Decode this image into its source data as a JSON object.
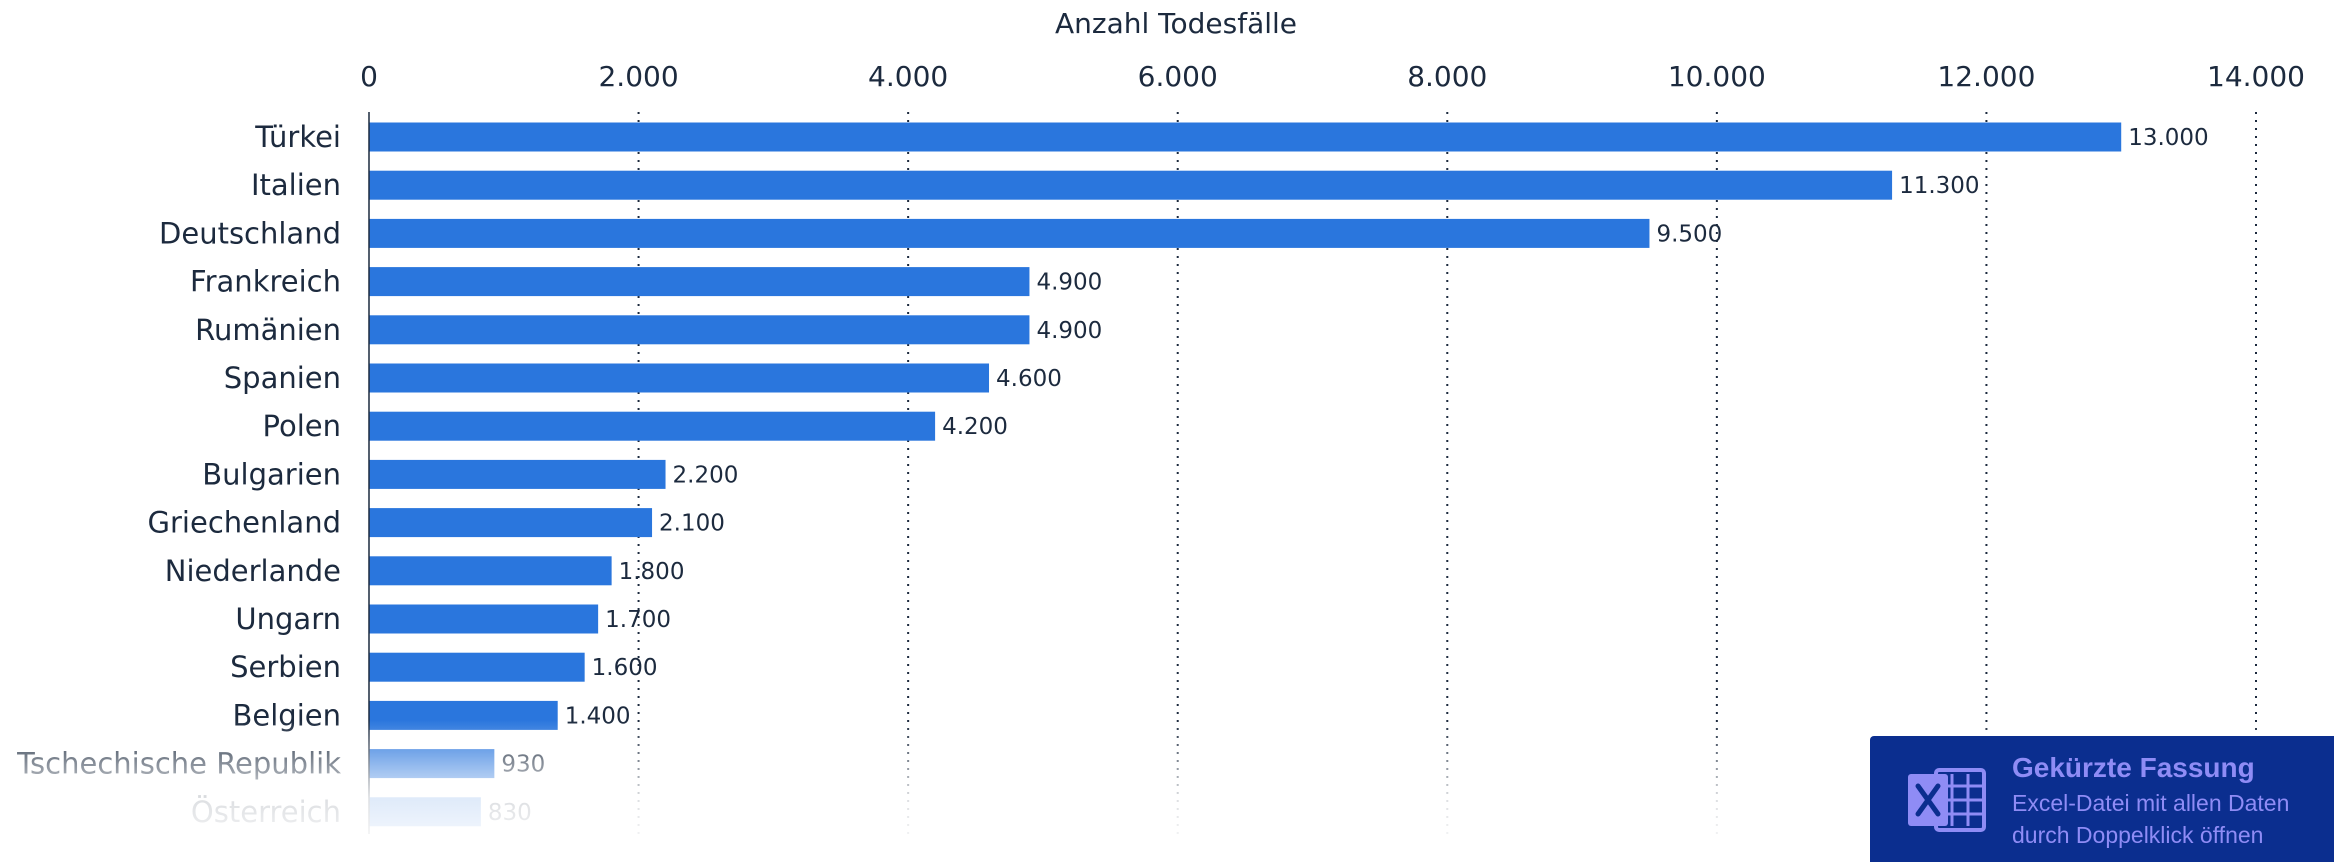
{
  "chart_data": {
    "type": "bar",
    "orientation": "horizontal",
    "title": "",
    "xlabel": "Anzahl Todesfälle",
    "ylabel": "",
    "xlim": [
      0,
      14000
    ],
    "ticks": [
      {
        "value": 0,
        "label": "0"
      },
      {
        "value": 2000,
        "label": "2.000"
      },
      {
        "value": 4000,
        "label": "4.000"
      },
      {
        "value": 6000,
        "label": "6.000"
      },
      {
        "value": 8000,
        "label": "8.000"
      },
      {
        "value": 10000,
        "label": "10.000"
      },
      {
        "value": 12000,
        "label": "12.000"
      },
      {
        "value": 14000,
        "label": "14.000"
      }
    ],
    "grid": true,
    "bar_color": "#2a76dd",
    "categories": [
      "Türkei",
      "Italien",
      "Deutschland",
      "Frankreich",
      "Rumänien",
      "Spanien",
      "Polen",
      "Bulgarien",
      "Griechenland",
      "Niederlande",
      "Ungarn",
      "Serbien",
      "Belgien",
      "Tschechische Republik",
      "Österreich"
    ],
    "values": [
      13000,
      11300,
      9500,
      4900,
      4900,
      4600,
      4200,
      2200,
      2100,
      1800,
      1700,
      1600,
      1400,
      930,
      830
    ],
    "value_labels": [
      "13.000",
      "11.300",
      "9.500",
      "4.900",
      "4.900",
      "4.600",
      "4.200",
      "2.200",
      "2.100",
      "1.800",
      "1.700",
      "1.600",
      "1.400",
      "930",
      "830"
    ]
  },
  "excel_panel": {
    "title": "Gekürzte Fassung",
    "line1": "Excel-Datei mit allen Daten",
    "line2": "durch Doppelklick öffnen",
    "icon": "excel-file-icon",
    "background": "#0b2e8f",
    "text_color": "#8f8cf5"
  }
}
